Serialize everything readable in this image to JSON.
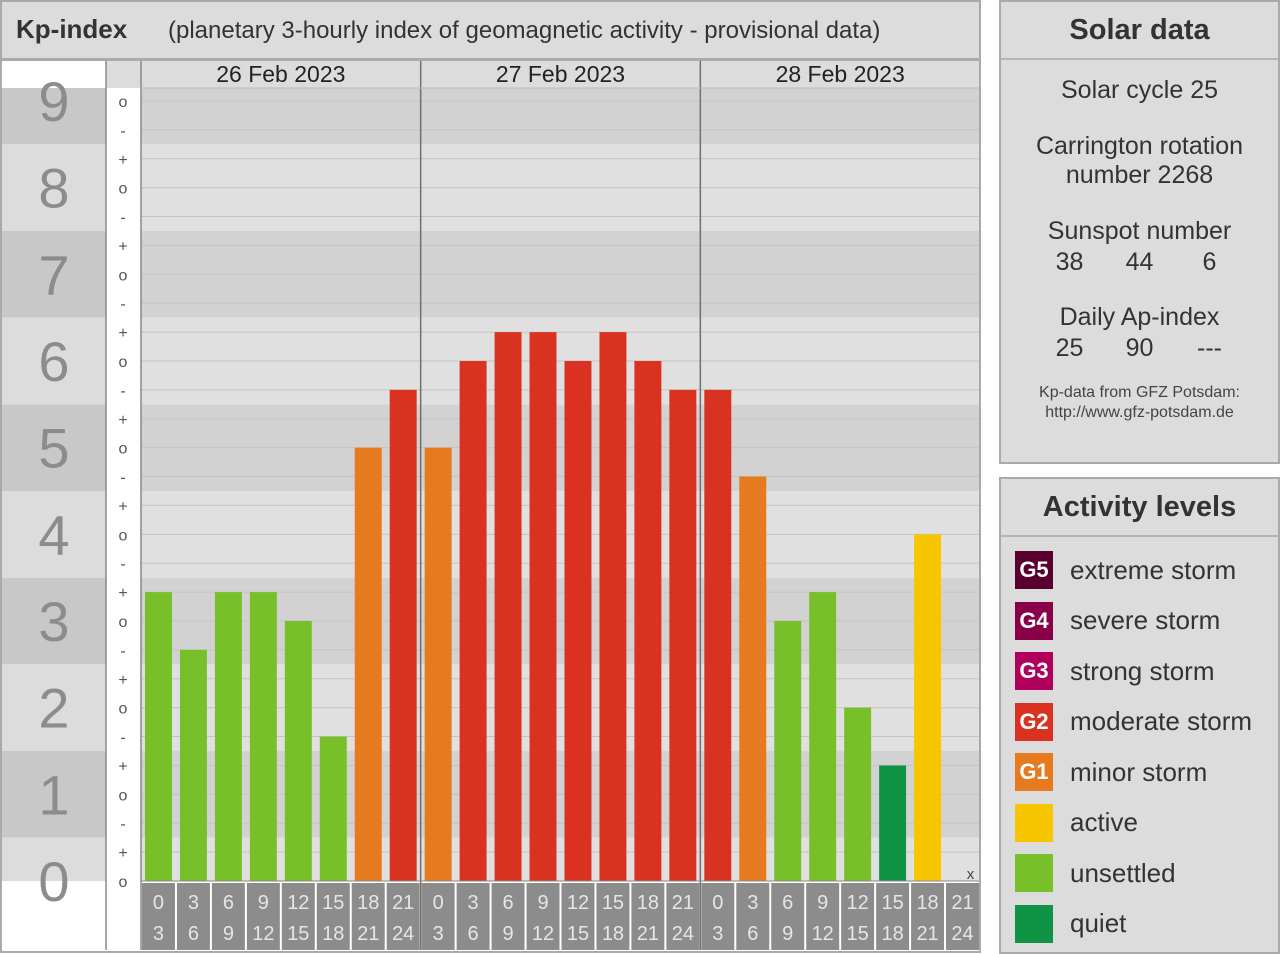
{
  "header": {
    "title": "Kp-index",
    "subtitle": "(planetary 3-hourly index of geomagnetic activity - provisional data)"
  },
  "chart_data": {
    "type": "bar",
    "title": "Kp-index",
    "subtitle": "(planetary 3-hourly index of geomagnetic activity - provisional data)",
    "ylim": [
      0,
      9
    ],
    "y_major_ticks": [
      "0",
      "1",
      "2",
      "3",
      "4",
      "5",
      "6",
      "7",
      "8",
      "9"
    ],
    "y_minor_marks": [
      "o",
      "-",
      "+"
    ],
    "days": [
      "26 Feb 2023",
      "27 Feb 2023",
      "28 Feb 2023"
    ],
    "interval_start_labels": [
      "0",
      "3",
      "6",
      "9",
      "12",
      "15",
      "18",
      "21"
    ],
    "interval_end_labels": [
      "3",
      "6",
      "9",
      "12",
      "15",
      "18",
      "21",
      "24"
    ],
    "values": [
      3.333,
      2.667,
      3.333,
      3.333,
      3.0,
      1.667,
      5.0,
      5.667,
      5.0,
      6.0,
      6.333,
      6.333,
      6.0,
      6.333,
      6.0,
      5.667,
      5.667,
      4.667,
      3.0,
      3.333,
      2.0,
      1.333,
      4.0,
      null
    ],
    "missing_marker": "x",
    "grid": true,
    "bar_colors": {
      "quiet": "#0f9446",
      "unsettled": "#78c029",
      "active": "#f7c600",
      "G1": "#e57a1e",
      "G2": "#d93220",
      "G3": "#b0005b",
      "G4": "#8a0048",
      "G5": "#5a002e"
    }
  },
  "solar": {
    "title": "Solar data",
    "cycle": "Solar cycle 25",
    "carrington_line1": "Carrington rotation",
    "carrington_line2": "number 2268",
    "sunspot_label": "Sunspot number",
    "sunspot_values": [
      "38",
      "44",
      "6"
    ],
    "ap_label": "Daily Ap-index",
    "ap_values": [
      "25",
      "90",
      "---"
    ],
    "credit_line1": "Kp-data from GFZ Potsdam:",
    "credit_line2": "http://www.gfz-potsdam.de"
  },
  "legend": {
    "title": "Activity levels",
    "items": [
      {
        "code": "G5",
        "label": "extreme storm",
        "color": "#5a002e"
      },
      {
        "code": "G4",
        "label": "severe storm",
        "color": "#8a0048"
      },
      {
        "code": "G3",
        "label": "strong storm",
        "color": "#b0005b"
      },
      {
        "code": "G2",
        "label": "moderate storm",
        "color": "#d93220"
      },
      {
        "code": "G1",
        "label": "minor storm",
        "color": "#e57a1e"
      },
      {
        "code": "",
        "label": "active",
        "color": "#f7c600"
      },
      {
        "code": "",
        "label": "unsettled",
        "color": "#78c029"
      },
      {
        "code": "",
        "label": "quiet",
        "color": "#0f9446"
      }
    ]
  }
}
